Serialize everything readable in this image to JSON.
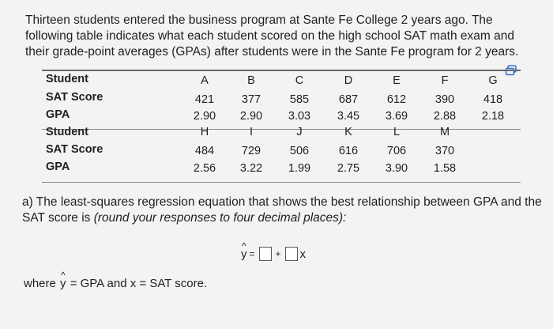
{
  "intro": "Thirteen students entered the business program at Sante Fe College 2 years ago. The following table indicates what each student scored on the high school SAT math exam and their grade-point averages (GPAs) after students were in the Sante Fe program for 2 years.",
  "table": {
    "row_labels": [
      "Student",
      "SAT Score",
      "GPA",
      "Student",
      "SAT Score",
      "GPA"
    ],
    "block1": {
      "students": [
        "A",
        "B",
        "C",
        "D",
        "E",
        "F",
        "G"
      ],
      "sat": [
        "421",
        "377",
        "585",
        "687",
        "612",
        "390",
        "418"
      ],
      "gpa": [
        "2.90",
        "2.90",
        "3.03",
        "3.45",
        "3.69",
        "2.88",
        "2.18"
      ]
    },
    "block2": {
      "students": [
        "H",
        "I",
        "J",
        "K",
        "L",
        "M"
      ],
      "sat": [
        "484",
        "729",
        "506",
        "616",
        "706",
        "370"
      ],
      "gpa": [
        "2.56",
        "3.22",
        "1.99",
        "2.75",
        "3.90",
        "1.58"
      ]
    }
  },
  "question": {
    "text": "a) The least-squares regression equation that shows the best relationship between GPA and the SAT score is ",
    "instruction": "(round your responses to four decimal places):"
  },
  "equation": {
    "y": "y",
    "hat": "^",
    "equals": "=",
    "plus": "+",
    "x": "x"
  },
  "footnote": {
    "prefix": "where ",
    "y": "y",
    "hat": "^",
    "suffix": " = GPA and x = SAT score."
  },
  "icons": {
    "copy": "copy-table-icon"
  }
}
